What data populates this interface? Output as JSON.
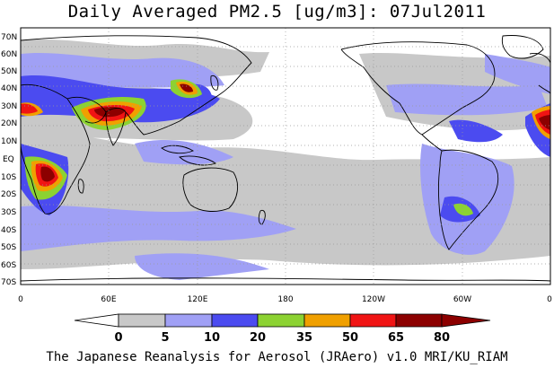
{
  "title": "Daily Averaged PM2.5 [ug/m3]: 07Jul2011",
  "footer": "The Japanese Reanalysis for Aerosol (JRAero) v1.0 MRI/KU_RIAM",
  "map": {
    "lat_labels": [
      "70N",
      "60N",
      "50N",
      "40N",
      "30N",
      "20N",
      "10N",
      "EQ",
      "10S",
      "20S",
      "30S",
      "40S",
      "50S",
      "60S",
      "70S"
    ],
    "lon_labels": [
      "0",
      "60E",
      "120E",
      "180",
      "120W",
      "60W",
      "0"
    ],
    "grid": "dotted"
  },
  "colorbar": {
    "levels": [
      "0",
      "5",
      "10",
      "20",
      "35",
      "50",
      "65",
      "80"
    ],
    "colors": [
      "#ffffff",
      "#c8c8c8",
      "#a0a0f5",
      "#4b4bf0",
      "#8cd232",
      "#f0a000",
      "#f01414",
      "#8c0000"
    ]
  },
  "legend_note": {
    "field": "PM2.5",
    "units": "ug/m3",
    "date": "07Jul2011"
  }
}
